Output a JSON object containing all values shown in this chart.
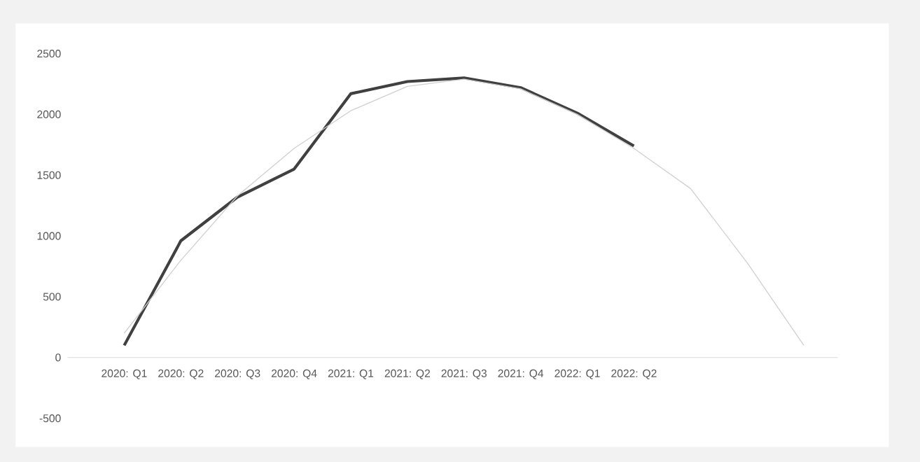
{
  "chart_data": {
    "type": "line",
    "categories": [
      "2020: Q1",
      "2020: Q2",
      "2020: Q3",
      "2020: Q4",
      "2021: Q1",
      "2021: Q2",
      "2021: Q3",
      "2021: Q4",
      "2022: Q1",
      "2022: Q2",
      null,
      null,
      null
    ],
    "series": [
      {
        "color": "#404040",
        "values": [
          100,
          960,
          1320,
          1550,
          2170,
          2270,
          2300,
          2220,
          2010,
          1740,
          null,
          null,
          null
        ]
      },
      {
        "type": "line",
        "color": "#d0d0d0",
        "values": [
          200,
          800,
          1330,
          1720,
          2030,
          2230,
          2290,
          2210,
          2000,
          1720,
          1390,
          780,
          100
        ]
      }
    ],
    "ylim": [
      -500,
      2500
    ],
    "yticks": [
      -500,
      0,
      500,
      1000,
      1500,
      2000,
      2500
    ],
    "marker": "none",
    "line_style": "solid"
  }
}
